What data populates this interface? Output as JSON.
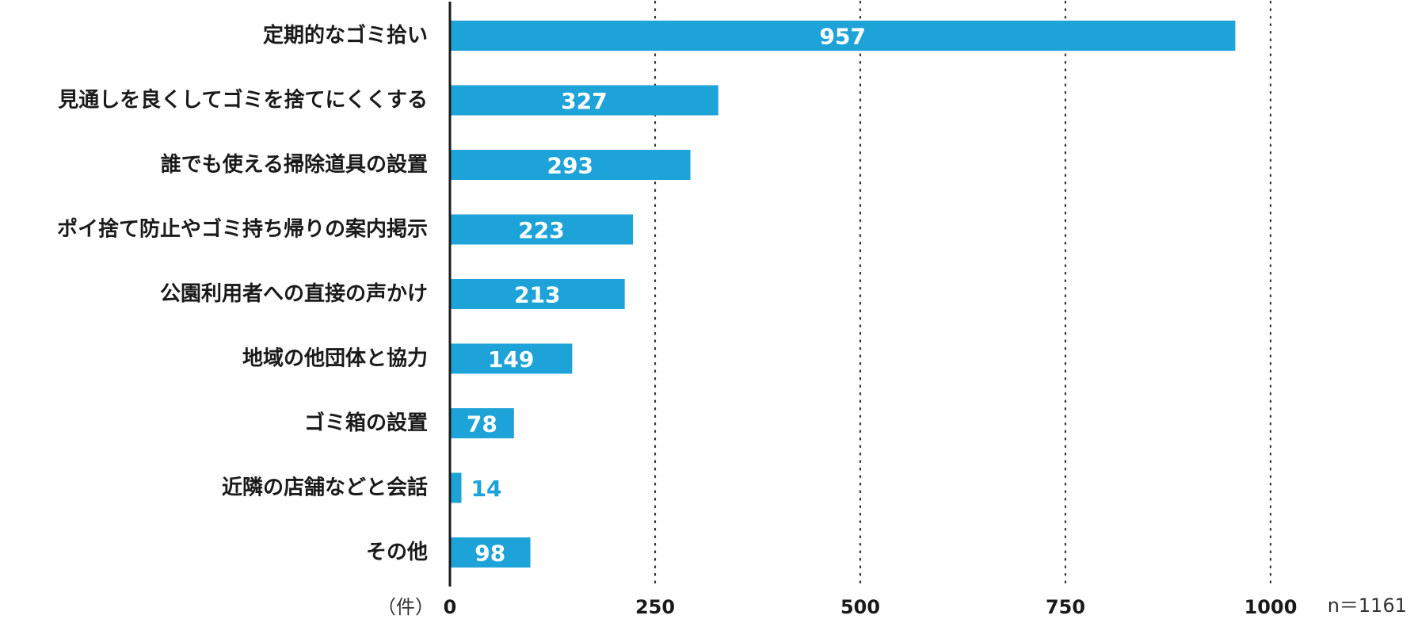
{
  "chart_data": {
    "type": "bar",
    "orientation": "horizontal",
    "categories": [
      "定期的なゴミ拾い",
      "見通しを良くしてゴミを捨てにくくする",
      "誰でも使える掃除道具の設置",
      "ポイ捨て防止やゴミ持ち帰りの案内掲示",
      "公園利用者への直接の声かけ",
      "地域の他団体と協力",
      "ゴミ箱の設置",
      "近隣の店舗などと会話",
      "その他"
    ],
    "values": [
      957,
      327,
      293,
      223,
      213,
      149,
      78,
      14,
      98
    ],
    "xlim": [
      0,
      1000
    ],
    "ticks": [
      0,
      250,
      500,
      750,
      1000
    ],
    "tick_labels": [
      "0",
      "250",
      "500",
      "750",
      "1000"
    ],
    "unit_label": "（件）",
    "sample_label": "n＝1161",
    "grid": "vertical dotted",
    "bar_color": "#1ea3d8"
  }
}
